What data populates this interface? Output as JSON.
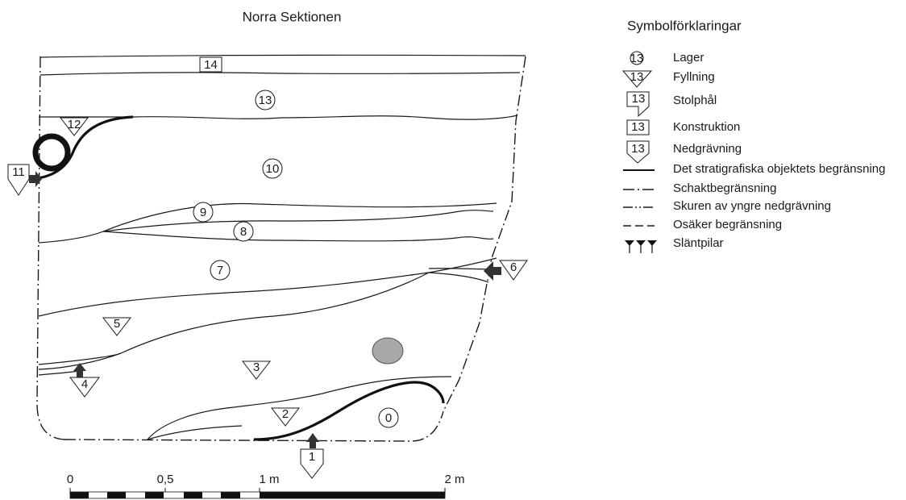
{
  "title": "Norra Sektionen",
  "layers": {
    "l0": "0",
    "l1": "1",
    "l2": "2",
    "l3": "3",
    "l4": "4",
    "l5": "5",
    "l6": "6",
    "l7": "7",
    "l8": "8",
    "l9": "9",
    "l10": "10",
    "l11": "11",
    "l12": "12",
    "l13": "13",
    "l14": "14"
  },
  "legend": {
    "title": "Symbolförklaringar",
    "sample_number": "13",
    "items": {
      "lager": "Lager",
      "fyllning": "Fyllning",
      "stolphal": "Stolphål",
      "konstruktion": "Konstruktion",
      "nedgravning": "Nedgrävning",
      "begransning": "Det stratigrafiska objektets begränsning",
      "schakt": "Schaktbegränsning",
      "skuren": "Skuren av yngre nedgrävning",
      "osaker": "Osäker begränsning",
      "slantpilar": "Släntpilar"
    }
  },
  "scale": {
    "t0": "0",
    "t05": "0,5",
    "t1": "1 m",
    "t2": "2 m"
  },
  "colors": {
    "ink": "#1a1a1a",
    "stone": "#a8a8a8",
    "arrow": "#333333"
  }
}
